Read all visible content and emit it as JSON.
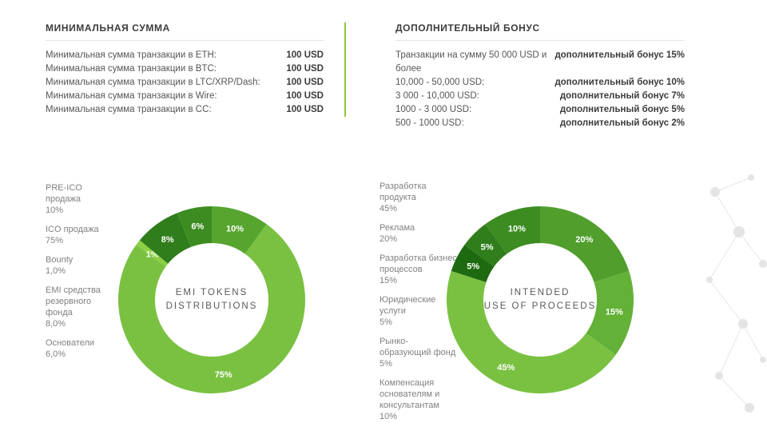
{
  "min_sum": {
    "title": "МИНИМАЛЬНАЯ СУММА",
    "rows": [
      {
        "label": "Минимальная сумма транзакции в ETH:",
        "value": "100 USD"
      },
      {
        "label": "Минимальная сумма транзакции в BTC:",
        "value": "100 USD"
      },
      {
        "label": "Минимальная сумма транзакции в LTC/XRP/Dash:",
        "value": "100 USD"
      },
      {
        "label": "Минимальная сумма транзакции в Wire:",
        "value": "100 USD"
      },
      {
        "label": "Минимальная сумма транзакции в CC:",
        "value": "100 USD"
      }
    ]
  },
  "bonus": {
    "title": "ДОПОЛНИТЕЛЬНЫЙ БОНУС",
    "rows": [
      {
        "label": "Транзакции на сумму 50 000 USD и более",
        "value": "дополнительный бонус 15%"
      },
      {
        "label": "10,000 - 50,000 USD:",
        "value": "дополнительный бонус 10%"
      },
      {
        "label": "3 000 - 10,000 USD:",
        "value": "дополнительный бонус 7%"
      },
      {
        "label": "1000 - 3 000 USD:",
        "value": "дополнительный бонус 5%"
      },
      {
        "label": "500 - 1000 USD:",
        "value": "дополнительный бонус 2%"
      }
    ]
  },
  "chart_data": [
    {
      "type": "pie",
      "title": "EMI TOKENS DISTRIBUTIONS",
      "center_lines": [
        "EMI  TOKENS",
        "DISTRIBUTIONS"
      ],
      "legend": [
        {
          "label": "PRE-ICO продажа",
          "pct": "10%"
        },
        {
          "label": "ICO продажа",
          "pct": "75%"
        },
        {
          "label": "Bounty",
          "pct": "1,0%"
        },
        {
          "label": "EMI средства резервного фонда",
          "pct": "8,0%"
        },
        {
          "label": "Основатели",
          "pct": "6,0%"
        }
      ],
      "slices": [
        {
          "name": "PRE-ICO продажа",
          "value": 10,
          "label": "10%",
          "color": "#57a52f"
        },
        {
          "name": "ICO продажа",
          "value": 75,
          "label": "75%",
          "color": "#7ac142"
        },
        {
          "name": "Bounty",
          "value": 1,
          "label": "1%",
          "color": "#8ed044"
        },
        {
          "name": "EMI средства резервного фонда",
          "value": 8,
          "label": "8%",
          "color": "#2f7d1b"
        },
        {
          "name": "Основатели",
          "value": 6,
          "label": "6%",
          "color": "#3d8c22"
        }
      ]
    },
    {
      "type": "pie",
      "title": "INTENDED USE OF PROCEEDS",
      "center_lines": [
        "INTENDED",
        "USE OF PROCEEDS"
      ],
      "legend": [
        {
          "label": "Разработка продукта",
          "pct": "45%"
        },
        {
          "label": "Реклама",
          "pct": "20%"
        },
        {
          "label": "Разработка бизнес процессов",
          "pct": "15%"
        },
        {
          "label": "Юридические услуги",
          "pct": "5%"
        },
        {
          "label": "Рынко-образующий фонд",
          "pct": "5%"
        },
        {
          "label": "Компенсация основателям и консультантам",
          "pct": "10%"
        }
      ],
      "slices": [
        {
          "name": "Реклама",
          "value": 20,
          "label": "20%",
          "color": "#519e2d"
        },
        {
          "name": "Разработка бизнес процессов",
          "value": 15,
          "label": "15%",
          "color": "#63b137"
        },
        {
          "name": "Разработка продукта",
          "value": 45,
          "label": "45%",
          "color": "#7ac142"
        },
        {
          "name": "Юридические услуги",
          "value": 5,
          "label": "5%",
          "color": "#1e6a10"
        },
        {
          "name": "Рынко-образующий фонд",
          "value": 5,
          "label": "5%",
          "color": "#2f7d1b"
        },
        {
          "name": "Компенсация основателям и консультантам",
          "value": 10,
          "label": "10%",
          "color": "#3d8c22"
        }
      ]
    }
  ],
  "colors": {
    "accent": "#8dc63f",
    "heading": "#3c3c3b",
    "text": "#808184"
  }
}
